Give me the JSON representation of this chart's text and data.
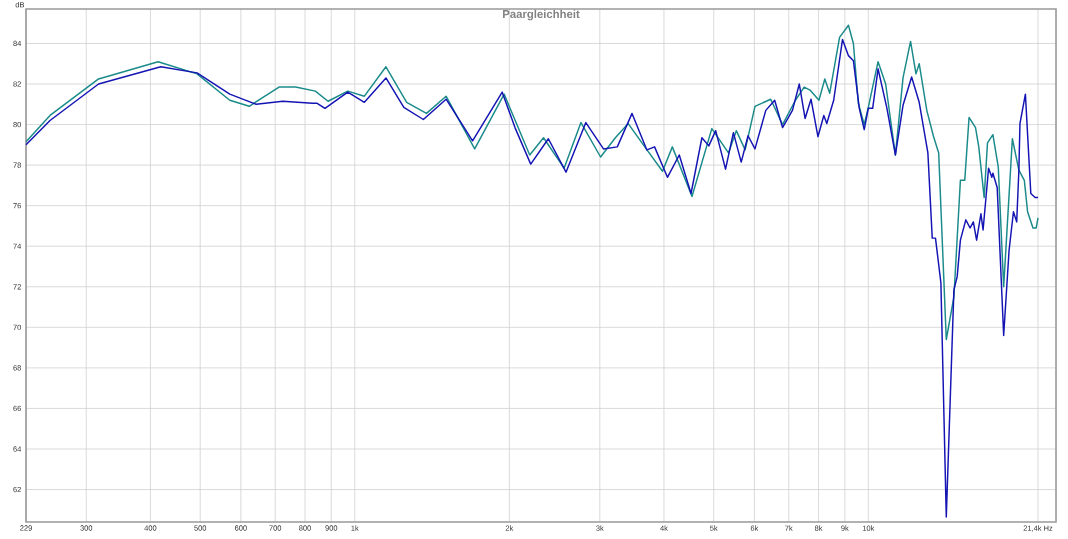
{
  "chart_data": {
    "type": "line",
    "title": "Paargleichheit",
    "ylabel": "dB",
    "xlim": [
      229,
      23200
    ],
    "ylim": [
      60.4,
      85.7
    ],
    "log": "x",
    "grid": true,
    "line_style": "solid",
    "xticks": [
      229,
      300,
      400,
      500,
      600,
      700,
      800,
      900,
      {
        "value": 1000,
        "label": "1k"
      },
      {
        "value": 2000,
        "label": "2k"
      },
      {
        "value": 3000,
        "label": "3k"
      },
      {
        "value": 4000,
        "label": "4k"
      },
      {
        "value": 5000,
        "label": "5k"
      },
      {
        "value": 6000,
        "label": "6k"
      },
      {
        "value": 7000,
        "label": "7k"
      },
      {
        "value": 8000,
        "label": "8k"
      },
      {
        "value": 9000,
        "label": "9k"
      },
      {
        "value": 10000,
        "label": "10k"
      },
      {
        "value": 21400,
        "label": "21,4k Hz"
      }
    ],
    "yticks": [
      62,
      64,
      66,
      68,
      70,
      72,
      74,
      76,
      78,
      80,
      82,
      84
    ],
    "series": [
      {
        "color": "#1a8a8a",
        "x": [
          229,
          255,
          317,
          414,
          493,
          571,
          623,
          712,
          767,
          838,
          887,
          969,
          1044,
          1150,
          1262,
          1379,
          1506,
          1712,
          1954,
          2191,
          2331,
          2556,
          2757,
          3011,
          3217,
          3408,
          3671,
          3975,
          4153,
          4536,
          4957,
          5342,
          5533,
          5757,
          6016,
          6456,
          6808,
          7212,
          7503,
          7701,
          8014,
          8228,
          8411,
          8791,
          9148,
          9353,
          9561,
          9818,
          10000,
          10447,
          10809,
          11291,
          11683,
          12085,
          12382,
          12563,
          12998,
          13383,
          13710,
          14185,
          14678,
          15112,
          15409,
          15710,
          16172,
          16410,
          16811,
          17065,
          17484,
          17910,
          18349,
          19079,
          19644,
          20128,
          20424,
          20924,
          21228,
          21400
        ],
        "values": [
          79.15,
          80.45,
          82.25,
          83.1,
          82.5,
          81.2,
          80.9,
          81.85,
          81.85,
          81.65,
          81.15,
          81.65,
          81.4,
          82.85,
          81.1,
          80.55,
          81.4,
          78.8,
          81.5,
          78.5,
          79.35,
          77.85,
          80.1,
          78.4,
          79.35,
          80.05,
          78.9,
          77.7,
          78.9,
          76.45,
          79.8,
          78.6,
          79.7,
          78.75,
          80.9,
          81.25,
          80.0,
          81.2,
          81.85,
          81.7,
          81.2,
          82.25,
          81.55,
          84.3,
          84.9,
          84.0,
          81.05,
          80.0,
          80.85,
          83.1,
          82.0,
          78.5,
          82.3,
          84.1,
          82.5,
          83.0,
          80.7,
          79.45,
          78.6,
          69.4,
          71.5,
          77.25,
          77.25,
          80.35,
          79.85,
          78.9,
          76.4,
          79.1,
          79.5,
          77.9,
          72.0,
          79.3,
          77.75,
          77.25,
          75.7,
          74.9,
          74.9,
          75.4
        ]
      },
      {
        "color": "#1414b4",
        "x": [
          229,
          255,
          317,
          419,
          493,
          571,
          643,
          724,
          827,
          845,
          875,
          969,
          1044,
          1150,
          1246,
          1360,
          1506,
          1696,
          1937,
          2051,
          2201,
          2382,
          2578,
          2818,
          3050,
          3245,
          3467,
          3705,
          3836,
          4063,
          4284,
          4516,
          4742,
          4891,
          5044,
          5272,
          5461,
          5656,
          5832,
          6016,
          6315,
          6572,
          6808,
          7117,
          7339,
          7532,
          7735,
          7979,
          8191,
          8301,
          8562,
          8908,
          9148,
          9353,
          9604,
          9818,
          10000,
          10196,
          10447,
          10861,
          11291,
          11683,
          12144,
          12563,
          13062,
          13319,
          13514,
          13846,
          14185,
          14678,
          14894,
          15112,
          15483,
          15784,
          16015,
          16251,
          16569,
          16730,
          17148,
          17399,
          17484,
          17823,
          18349,
          18800,
          19171,
          19454,
          19644,
          19739,
          20225,
          20721,
          21126,
          21400
        ],
        "values": [
          79.0,
          80.2,
          82.0,
          82.85,
          82.55,
          81.5,
          81.0,
          81.15,
          81.05,
          81.05,
          80.8,
          81.6,
          81.1,
          82.3,
          80.85,
          80.25,
          81.25,
          79.2,
          81.6,
          79.85,
          78.05,
          79.3,
          77.65,
          80.1,
          78.8,
          78.9,
          80.55,
          78.75,
          78.9,
          77.4,
          78.5,
          76.6,
          79.35,
          78.95,
          79.7,
          77.8,
          79.6,
          78.15,
          79.45,
          78.8,
          80.7,
          81.2,
          79.85,
          80.7,
          82.0,
          80.3,
          81.25,
          79.4,
          80.45,
          80.05,
          81.2,
          84.2,
          83.4,
          83.15,
          80.8,
          79.75,
          80.8,
          80.8,
          82.75,
          80.85,
          78.5,
          80.95,
          82.35,
          81.1,
          78.6,
          74.4,
          74.4,
          72.2,
          60.65,
          71.85,
          72.5,
          74.3,
          75.3,
          74.9,
          75.2,
          74.3,
          75.6,
          74.8,
          77.85,
          77.4,
          77.6,
          76.9,
          69.6,
          73.8,
          75.7,
          75.2,
          77.75,
          80.05,
          81.5,
          76.6,
          76.4,
          76.4
        ]
      }
    ]
  }
}
